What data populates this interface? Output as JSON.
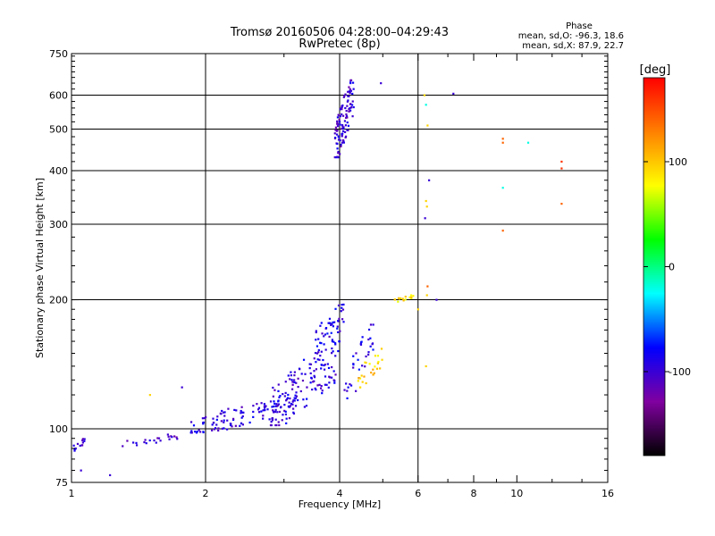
{
  "chart_data": {
    "type": "scatter",
    "title": "Tromsø 20160506 04:28:00–04:29:43",
    "subtitle": "RwPretec (8p)",
    "xlabel": "Frequency [MHz]",
    "ylabel": "Stationary phase Virtual Height [km]",
    "x_scale": "log",
    "y_scale": "log",
    "xlim": [
      1,
      16
    ],
    "ylim": [
      75,
      750
    ],
    "x_ticks": [
      1,
      2,
      4,
      6,
      8,
      10,
      16
    ],
    "x_tick_labels": [
      "1",
      "2",
      "4",
      "6",
      "8",
      "10",
      "16"
    ],
    "x_grid_lines": [
      2,
      4,
      6
    ],
    "y_ticks": [
      75,
      100,
      200,
      300,
      400,
      500,
      600,
      750
    ],
    "y_tick_labels": [
      "75",
      "100",
      "200",
      "300",
      "400",
      "500",
      "600",
      "750"
    ],
    "y_grid_lines": [
      100,
      200,
      300,
      400,
      500,
      600
    ],
    "grid": true,
    "phase_box": {
      "heading": "Phase",
      "line_o": "mean, sd,O: -96.3, 18.6",
      "line_x": "mean, sd,X:  87.9, 22.7"
    },
    "colorbar": {
      "label": "[deg]",
      "range": [
        -180,
        180
      ],
      "ticks": [
        100,
        0,
        -100
      ],
      "tick_labels": [
        "100",
        "0",
        "-100"
      ],
      "colormap": [
        "#000000",
        "#8000a0",
        "#0000ff",
        "#00ffff",
        "#00ff00",
        "#ffff00",
        "#ff8000",
        "#ff0000"
      ]
    },
    "clusters": [
      {
        "name": "",
        "count": 14,
        "x": [
          1.0,
          1.07
        ],
        "y": [
          88,
          95
        ],
        "phase": -100
      },
      {
        "name": "",
        "count": 22,
        "x": [
          1.3,
          1.75
        ],
        "y": [
          91,
          97
        ],
        "phase": -100
      },
      {
        "name": "",
        "count": 120,
        "x": [
          1.85,
          3.2
        ],
        "y": [
          98,
          118
        ],
        "phase": -95
      },
      {
        "name": "",
        "count": 140,
        "x": [
          2.8,
          4.0
        ],
        "y": [
          102,
          160
        ],
        "phase": -95
      },
      {
        "name": "",
        "count": 45,
        "x": [
          3.5,
          4.1
        ],
        "y": [
          150,
          195
        ],
        "phase": -90
      },
      {
        "name": "",
        "count": 35,
        "x": [
          4.1,
          4.8
        ],
        "y": [
          115,
          175
        ],
        "phase": -90
      },
      {
        "name": "",
        "count": 25,
        "x": [
          4.4,
          5.0
        ],
        "y": [
          125,
          155
        ],
        "phase": 95
      },
      {
        "name": "",
        "count": 15,
        "x": [
          5.3,
          5.9
        ],
        "y": [
          198,
          205
        ],
        "phase": 90
      },
      {
        "name": "",
        "count": 110,
        "x": [
          3.9,
          4.3
        ],
        "y": [
          430,
          650
        ],
        "phase": -100
      }
    ],
    "points": [
      {
        "x": 1.5,
        "y": 120,
        "phase": 95
      },
      {
        "x": 1.05,
        "y": 80,
        "phase": -100
      },
      {
        "x": 1.22,
        "y": 78,
        "phase": -100
      },
      {
        "x": 1.77,
        "y": 125,
        "phase": -100
      },
      {
        "x": 4.95,
        "y": 640,
        "phase": -100
      },
      {
        "x": 6.2,
        "y": 600,
        "phase": 95
      },
      {
        "x": 6.25,
        "y": 570,
        "phase": -20
      },
      {
        "x": 6.3,
        "y": 510,
        "phase": 95
      },
      {
        "x": 6.35,
        "y": 380,
        "phase": -100
      },
      {
        "x": 6.25,
        "y": 340,
        "phase": 95
      },
      {
        "x": 6.28,
        "y": 330,
        "phase": 95
      },
      {
        "x": 6.22,
        "y": 310,
        "phase": -100
      },
      {
        "x": 6.3,
        "y": 215,
        "phase": 140
      },
      {
        "x": 6.28,
        "y": 205,
        "phase": 95
      },
      {
        "x": 6.25,
        "y": 140,
        "phase": 95
      },
      {
        "x": 6.0,
        "y": 190,
        "phase": 95
      },
      {
        "x": 6.6,
        "y": 200,
        "phase": -100
      },
      {
        "x": 7.2,
        "y": 605,
        "phase": -100
      },
      {
        "x": 9.3,
        "y": 475,
        "phase": 140
      },
      {
        "x": 9.3,
        "y": 465,
        "phase": 140
      },
      {
        "x": 9.3,
        "y": 365,
        "phase": -20
      },
      {
        "x": 9.3,
        "y": 290,
        "phase": 140
      },
      {
        "x": 10.6,
        "y": 465,
        "phase": -20
      },
      {
        "x": 12.6,
        "y": 420,
        "phase": 160
      },
      {
        "x": 12.6,
        "y": 405,
        "phase": 160
      },
      {
        "x": 12.6,
        "y": 335,
        "phase": 140
      }
    ]
  }
}
